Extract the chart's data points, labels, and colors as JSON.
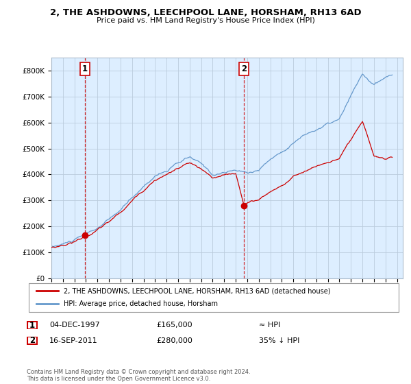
{
  "title": "2, THE ASHDOWNS, LEECHPOOL LANE, HORSHAM, RH13 6AD",
  "subtitle": "Price paid vs. HM Land Registry's House Price Index (HPI)",
  "ylim": [
    0,
    850000
  ],
  "yticks": [
    0,
    100000,
    200000,
    300000,
    400000,
    500000,
    600000,
    700000,
    800000
  ],
  "ytick_labels": [
    "£0",
    "£100K",
    "£200K",
    "£300K",
    "£400K",
    "£500K",
    "£600K",
    "£700K",
    "£800K"
  ],
  "background_color": "#ffffff",
  "plot_bg_color": "#ddeeff",
  "grid_color": "#bbccdd",
  "hpi_color": "#6699cc",
  "price_color": "#cc0000",
  "dashed_color": "#cc0000",
  "purchase1_year": 1997.92,
  "purchase1_price": 165000,
  "purchase2_year": 2011.71,
  "purchase2_price": 280000,
  "legend_price_label": "2, THE ASHDOWNS, LEECHPOOL LANE, HORSHAM, RH13 6AD (detached house)",
  "legend_hpi_label": "HPI: Average price, detached house, Horsham",
  "footer": "Contains HM Land Registry data © Crown copyright and database right 2024.\nThis data is licensed under the Open Government Licence v3.0.",
  "xmin": 1995.0,
  "xmax": 2025.5
}
